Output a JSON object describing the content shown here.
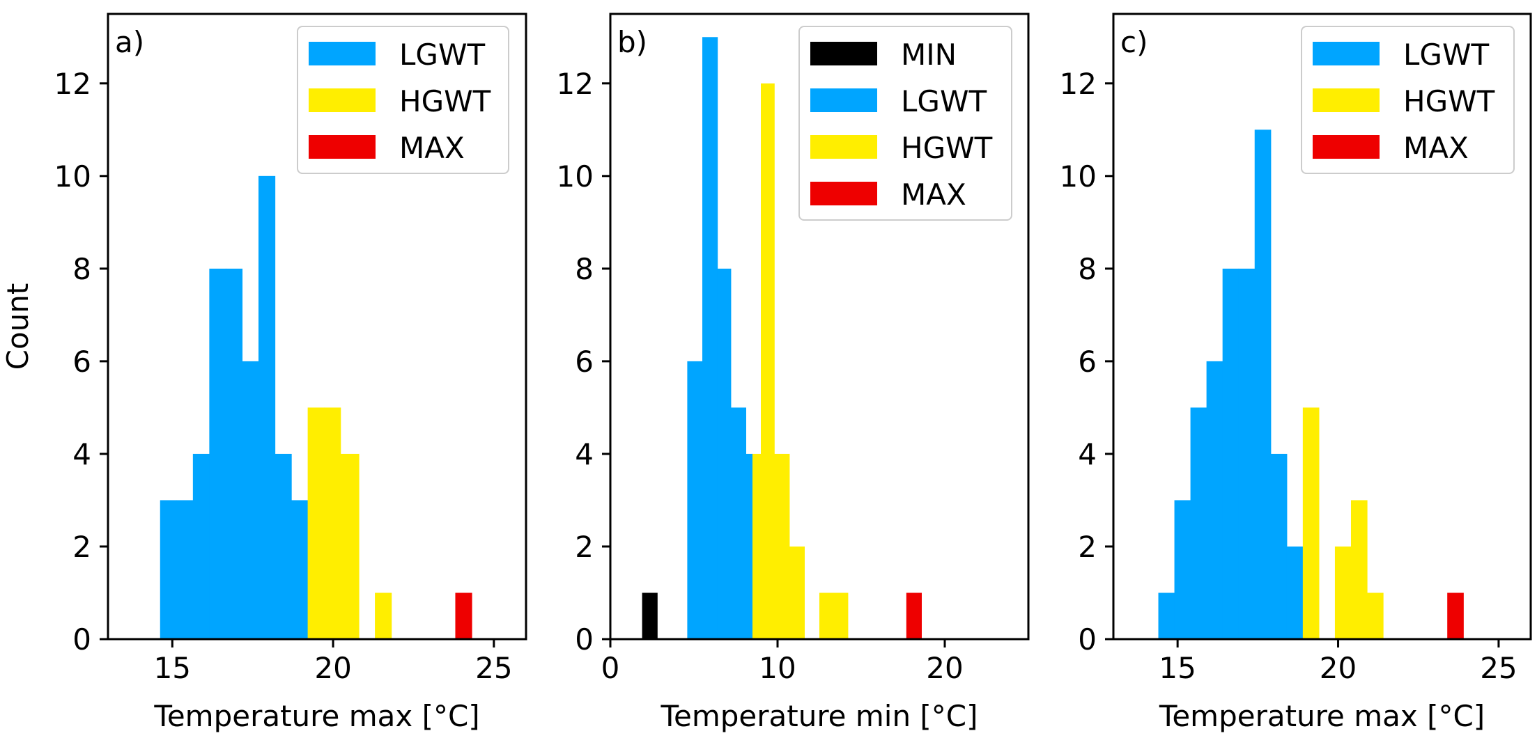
{
  "chart_data": [
    {
      "type": "histogram",
      "panel_label": "a)",
      "xlabel": "Temperature max [°C]",
      "ylabel": "Count",
      "xlim": [
        13,
        26
      ],
      "ylim": [
        0,
        13.5
      ],
      "xticks": [
        15,
        20,
        25
      ],
      "yticks": [
        0,
        2,
        4,
        6,
        8,
        10,
        12
      ],
      "legend_position": "top-right",
      "legend": [
        {
          "name": "LGWT",
          "color": "#00a5ff"
        },
        {
          "name": "HGWT",
          "color": "#ffee00"
        },
        {
          "name": "MAX",
          "color": "#ee0000"
        }
      ],
      "series": [
        {
          "name": "LGWT",
          "color": "#00a5ff",
          "bins": [
            {
              "x0": 14.62,
              "x1": 15.13,
              "count": 3
            },
            {
              "x0": 15.13,
              "x1": 15.64,
              "count": 3
            },
            {
              "x0": 15.64,
              "x1": 16.15,
              "count": 4
            },
            {
              "x0": 16.15,
              "x1": 16.66,
              "count": 8
            },
            {
              "x0": 16.66,
              "x1": 17.17,
              "count": 8
            },
            {
              "x0": 17.17,
              "x1": 17.68,
              "count": 6
            },
            {
              "x0": 17.68,
              "x1": 18.19,
              "count": 10
            },
            {
              "x0": 18.19,
              "x1": 18.7,
              "count": 4
            },
            {
              "x0": 18.7,
              "x1": 19.21,
              "count": 3
            }
          ]
        },
        {
          "name": "HGWT",
          "color": "#ffee00",
          "bins": [
            {
              "x0": 19.21,
              "x1": 19.72,
              "count": 5
            },
            {
              "x0": 19.72,
              "x1": 20.23,
              "count": 5
            },
            {
              "x0": 20.23,
              "x1": 20.8,
              "count": 4
            },
            {
              "x0": 21.3,
              "x1": 21.81,
              "count": 1
            }
          ]
        },
        {
          "name": "MAX",
          "color": "#ee0000",
          "bins": [
            {
              "x0": 23.8,
              "x1": 24.31,
              "count": 1
            }
          ]
        }
      ]
    },
    {
      "type": "histogram",
      "panel_label": "b)",
      "xlabel": "Temperature min [°C]",
      "ylabel": "",
      "xlim": [
        0,
        25
      ],
      "ylim": [
        0,
        13.5
      ],
      "xticks": [
        0,
        10,
        20
      ],
      "yticks": [
        0,
        2,
        4,
        6,
        8,
        10,
        12
      ],
      "legend_position": "top-right",
      "legend": [
        {
          "name": "MIN",
          "color": "#000000"
        },
        {
          "name": "LGWT",
          "color": "#00a5ff"
        },
        {
          "name": "HGWT",
          "color": "#ffee00"
        },
        {
          "name": "MAX",
          "color": "#ee0000"
        }
      ],
      "series": [
        {
          "name": "MIN",
          "color": "#000000",
          "bins": [
            {
              "x0": 1.9,
              "x1": 2.8,
              "count": 1
            }
          ]
        },
        {
          "name": "LGWT",
          "color": "#00a5ff",
          "bins": [
            {
              "x0": 4.6,
              "x1": 5.5,
              "count": 6
            },
            {
              "x0": 5.5,
              "x1": 6.4,
              "count": 13
            },
            {
              "x0": 6.4,
              "x1": 7.2,
              "count": 8
            },
            {
              "x0": 7.2,
              "x1": 8.1,
              "count": 5
            },
            {
              "x0": 8.1,
              "x1": 8.5,
              "count": 4
            }
          ]
        },
        {
          "name": "HGWT",
          "color": "#ffee00",
          "bins": [
            {
              "x0": 8.5,
              "x1": 9.0,
              "count": 4
            },
            {
              "x0": 9.0,
              "x1": 9.8,
              "count": 12
            },
            {
              "x0": 9.8,
              "x1": 10.7,
              "count": 4
            },
            {
              "x0": 10.7,
              "x1": 11.6,
              "count": 2
            },
            {
              "x0": 12.5,
              "x1": 14.2,
              "count": 1
            }
          ]
        },
        {
          "name": "MAX",
          "color": "#ee0000",
          "bins": [
            {
              "x0": 17.7,
              "x1": 18.6,
              "count": 1
            }
          ]
        }
      ]
    },
    {
      "type": "histogram",
      "panel_label": "c)",
      "xlabel": "Temperature max [°C]",
      "ylabel": "",
      "xlim": [
        13,
        26
      ],
      "ylim": [
        0,
        13.5
      ],
      "xticks": [
        15,
        20,
        25
      ],
      "yticks": [
        0,
        2,
        4,
        6,
        8,
        10,
        12
      ],
      "legend_position": "top-right",
      "legend": [
        {
          "name": "LGWT",
          "color": "#00a5ff"
        },
        {
          "name": "HGWT",
          "color": "#ffee00"
        },
        {
          "name": "MAX",
          "color": "#ee0000"
        }
      ],
      "series": [
        {
          "name": "LGWT",
          "color": "#00a5ff",
          "bins": [
            {
              "x0": 14.4,
              "x1": 14.9,
              "count": 1
            },
            {
              "x0": 14.9,
              "x1": 15.4,
              "count": 3
            },
            {
              "x0": 15.4,
              "x1": 15.9,
              "count": 5
            },
            {
              "x0": 15.9,
              "x1": 16.4,
              "count": 6
            },
            {
              "x0": 16.4,
              "x1": 16.9,
              "count": 8
            },
            {
              "x0": 16.9,
              "x1": 17.4,
              "count": 8
            },
            {
              "x0": 17.4,
              "x1": 17.9,
              "count": 11
            },
            {
              "x0": 17.9,
              "x1": 18.4,
              "count": 4
            },
            {
              "x0": 18.4,
              "x1": 18.9,
              "count": 2
            }
          ]
        },
        {
          "name": "HGWT",
          "color": "#ffee00",
          "bins": [
            {
              "x0": 18.9,
              "x1": 19.4,
              "count": 5
            },
            {
              "x0": 19.9,
              "x1": 20.4,
              "count": 2
            },
            {
              "x0": 20.4,
              "x1": 20.9,
              "count": 3
            },
            {
              "x0": 20.9,
              "x1": 21.4,
              "count": 1
            }
          ]
        },
        {
          "name": "MAX",
          "color": "#ee0000",
          "bins": [
            {
              "x0": 23.4,
              "x1": 23.9,
              "count": 1
            }
          ]
        }
      ]
    }
  ]
}
